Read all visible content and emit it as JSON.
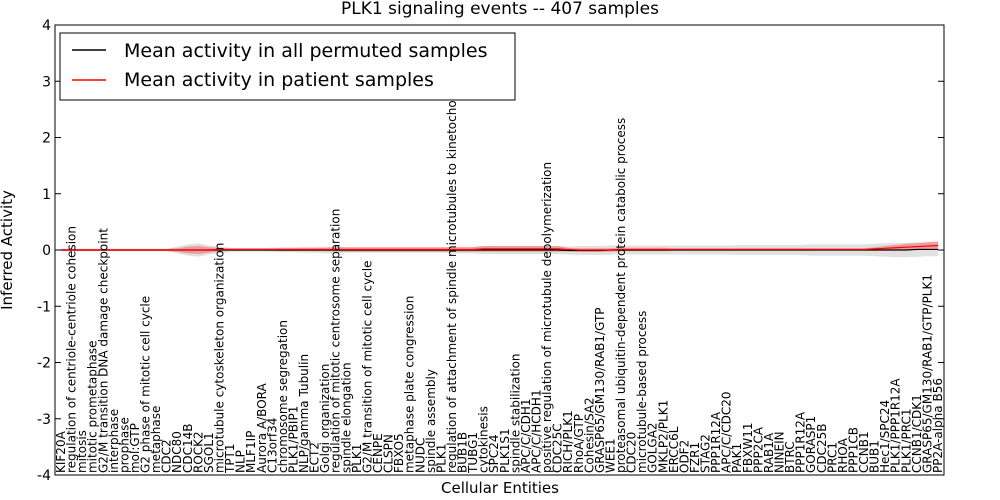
{
  "chart_data": {
    "type": "line",
    "title": "PLK1 signaling events -- 407 samples",
    "xlabel": "Cellular Entities",
    "ylabel": "Inferred Activity",
    "ylim": [
      -4,
      4
    ],
    "yticks": [
      -4,
      -3,
      -2,
      -1,
      0,
      1,
      2,
      3,
      4
    ],
    "grid": false,
    "legend": {
      "placement": "top-left",
      "entries": [
        {
          "name": "Mean activity in all permuted samples",
          "color": "#000000"
        },
        {
          "name": "Mean activity in patient samples",
          "color": "#ff0000"
        }
      ]
    },
    "categories": [
      "KIF20A",
      "regulation of centriole-centriole cohesion",
      "mitosis",
      "mitotic prometaphase",
      "G2/M transition DNA damage checkpoint",
      "interphase",
      "prophase",
      "mol:GTP",
      "G2 phase of mitotic cell cycle",
      "metaphase",
      "CDC2",
      "NDC80",
      "CDC14B",
      "ROCK2",
      "SGOL1",
      "microtubule cytoskeleton organization",
      "TPT1",
      "NLP",
      "MLF1IP",
      "Aurora A/BORA",
      "C13orf34",
      "chromosome segregation",
      "PLK1/PBIP1",
      "NLP/gamma Tubulin",
      "ECT2",
      "Golgi organization",
      "regulation of mitotic centrosome separation",
      "spindle elongation",
      "PLK1",
      "G2/M transition of mitotic cell cycle",
      "CENPE",
      "CLSPN",
      "FBXO5",
      "metaphase plate congression",
      "NUDC",
      "spindle assembly",
      "PLK1",
      "regulation of attachment of spindle microtubules to kinetochore",
      "BUB1B",
      "TUBG1",
      "cytokinesis",
      "SPC24",
      "PLK1S1",
      "spindle stabilization",
      "APC/C/CDH1",
      "APC/C/HCDH1",
      "positive regulation of microtubule depolymerization",
      "CDC25C",
      "RICH/PLK1",
      "RhoA/GTP",
      "Cohesin/SA2",
      "GRASP65/GM130/RAB1/GTP",
      "WEE1",
      "proteasomal ubiquitin-dependent protein catabolic process",
      "CDC20",
      "microtubule-based process",
      "GOLGA2",
      "MKLP2/PLK1",
      "ERCC6L",
      "ODF2",
      "FZR1",
      "STAG2",
      "PPP1R12A",
      "APC/C/CDC20",
      "PAK1",
      "FBXW11",
      "PPP2CA",
      "RAB1A",
      "NINEIN",
      "BTRC",
      "PPP1R12A",
      "GORASP1",
      "CDC25B",
      "PRC1",
      "RHOA",
      "PPP1CB",
      "CCNB1",
      "BUB1",
      "Hec1/SPC24",
      "PLK1/PPP1R12A",
      "PLK1/PRC1",
      "CCNB1/CDK1",
      "GRASP65/GM130/RAB1/GTP/PLK1",
      "PP2A-alpha B56"
    ],
    "series": [
      {
        "name": "Mean activity in patient samples",
        "values": [
          0.0,
          0.0,
          0.0,
          0.0,
          0.0,
          0.0,
          0.0,
          0.0,
          0.0,
          0.0,
          0.0,
          0.0,
          0.0,
          0.0,
          0.0,
          0.01,
          0.01,
          0.01,
          0.01,
          0.01,
          0.01,
          0.01,
          0.01,
          0.01,
          0.01,
          0.01,
          0.01,
          0.01,
          0.01,
          0.01,
          0.01,
          0.01,
          0.01,
          0.01,
          0.01,
          0.01,
          0.01,
          0.01,
          0.01,
          0.01,
          0.02,
          0.02,
          0.02,
          0.02,
          0.02,
          0.02,
          0.02,
          0.02,
          0.01,
          0.0,
          0.0,
          0.0,
          0.0,
          0.01,
          0.01,
          0.01,
          0.01,
          0.01,
          0.01,
          0.01,
          0.01,
          0.01,
          0.01,
          0.01,
          0.01,
          0.01,
          0.01,
          0.01,
          0.01,
          0.01,
          0.01,
          0.01,
          0.01,
          0.01,
          0.01,
          0.01,
          0.01,
          0.02,
          0.03,
          0.04,
          0.05,
          0.06,
          0.07,
          0.08
        ]
      },
      {
        "name": "Mean activity in all permuted samples",
        "values": [
          0.0,
          0.0,
          0.0,
          0.0,
          0.0,
          0.0,
          0.0,
          0.0,
          0.0,
          0.0,
          0.0,
          0.0,
          0.0,
          0.0,
          0.0,
          0.0,
          0.0,
          0.0,
          0.0,
          0.0,
          0.0,
          0.0,
          0.0,
          0.0,
          0.0,
          0.0,
          0.0,
          0.0,
          0.0,
          0.0,
          0.0,
          0.0,
          0.0,
          0.0,
          0.0,
          0.0,
          0.0,
          0.0,
          0.0,
          0.0,
          0.0,
          0.0,
          0.0,
          0.0,
          0.0,
          0.0,
          0.0,
          0.0,
          -0.01,
          -0.01,
          -0.01,
          -0.01,
          0.0,
          0.0,
          0.0,
          0.0,
          0.0,
          0.0,
          0.0,
          0.0,
          0.0,
          0.0,
          0.0,
          0.0,
          0.0,
          0.0,
          0.0,
          0.0,
          0.0,
          0.0,
          0.0,
          0.0,
          0.0,
          0.0,
          0.0,
          0.0,
          0.0,
          0.0,
          0.0,
          0.0,
          0.0,
          0.01,
          0.01,
          0.01
        ]
      }
    ],
    "bands": [
      {
        "name": "Patient samples spread",
        "color": "#f08080",
        "spread": [
          0.02,
          0.02,
          0.02,
          0.02,
          0.02,
          0.02,
          0.02,
          0.02,
          0.02,
          0.02,
          0.02,
          0.03,
          0.06,
          0.07,
          0.05,
          0.03,
          0.02,
          0.02,
          0.02,
          0.02,
          0.02,
          0.03,
          0.03,
          0.03,
          0.03,
          0.03,
          0.04,
          0.04,
          0.04,
          0.04,
          0.04,
          0.04,
          0.04,
          0.04,
          0.04,
          0.04,
          0.04,
          0.04,
          0.04,
          0.04,
          0.05,
          0.05,
          0.05,
          0.05,
          0.05,
          0.05,
          0.05,
          0.05,
          0.03,
          0.03,
          0.03,
          0.03,
          0.03,
          0.03,
          0.03,
          0.03,
          0.03,
          0.03,
          0.02,
          0.02,
          0.02,
          0.02,
          0.02,
          0.02,
          0.02,
          0.02,
          0.02,
          0.02,
          0.02,
          0.02,
          0.02,
          0.02,
          0.02,
          0.02,
          0.02,
          0.02,
          0.02,
          0.03,
          0.04,
          0.05,
          0.06,
          0.06,
          0.07,
          0.07
        ]
      },
      {
        "name": "Permuted samples spread",
        "color": "#c8c8c8",
        "spread": [
          0.02,
          0.02,
          0.02,
          0.02,
          0.02,
          0.02,
          0.02,
          0.02,
          0.02,
          0.02,
          0.02,
          0.06,
          0.1,
          0.12,
          0.08,
          0.06,
          0.04,
          0.03,
          0.03,
          0.03,
          0.04,
          0.04,
          0.04,
          0.05,
          0.05,
          0.06,
          0.06,
          0.05,
          0.05,
          0.05,
          0.05,
          0.05,
          0.05,
          0.05,
          0.05,
          0.05,
          0.05,
          0.06,
          0.06,
          0.06,
          0.07,
          0.07,
          0.07,
          0.07,
          0.07,
          0.07,
          0.07,
          0.07,
          0.07,
          0.08,
          0.08,
          0.08,
          0.08,
          0.08,
          0.08,
          0.08,
          0.08,
          0.08,
          0.08,
          0.08,
          0.08,
          0.08,
          0.08,
          0.08,
          0.09,
          0.09,
          0.09,
          0.09,
          0.09,
          0.09,
          0.09,
          0.1,
          0.1,
          0.1,
          0.1,
          0.1,
          0.1,
          0.11,
          0.12,
          0.13,
          0.13,
          0.13,
          0.12,
          0.12
        ]
      }
    ]
  }
}
